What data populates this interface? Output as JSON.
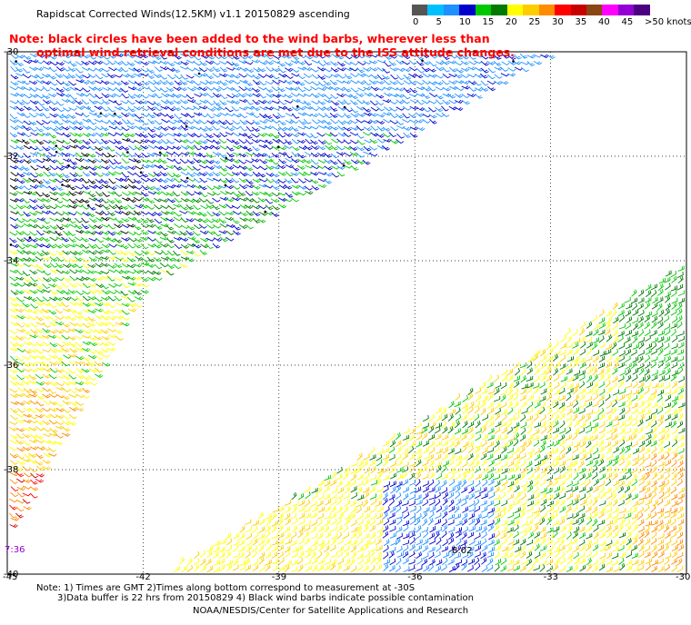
{
  "title": "Rapidscat Corrected Winds(12.5KM) v1.1 20150829 ascending",
  "note": {
    "line1": "Note: black circles have been added to the wind barbs, wherever less than",
    "line2": "optimal wind retrieval conditions are met due to the ISS attitude changes."
  },
  "legend": {
    "unit": "knots",
    "colors": [
      "#555555",
      "#00bfff",
      "#1e90ff",
      "#0000cd",
      "#00c800",
      "#007a00",
      "#ffff00",
      "#ffcc00",
      "#ff8c00",
      "#ff0000",
      "#c80000",
      "#8b4513",
      "#ff00ff",
      "#9400d3",
      "#4b0082"
    ],
    "labels": [
      {
        "text": "0",
        "at": 0
      },
      {
        "text": "5",
        "at": 1
      },
      {
        "text": "10",
        "at": 2
      },
      {
        "text": "15",
        "at": 3
      },
      {
        "text": "20",
        "at": 4
      },
      {
        "text": "25",
        "at": 5
      },
      {
        "text": "30",
        "at": 6
      },
      {
        "text": "35",
        "at": 7
      },
      {
        "text": "40",
        "at": 8
      },
      {
        "text": "45",
        "at": 9
      },
      {
        "text": ">50 knots",
        "at": 10
      }
    ]
  },
  "axes": {
    "lon_ticks": [
      "-45",
      "-42",
      "-39",
      "-36",
      "-33",
      "-30"
    ],
    "lat_ticks": [
      "-30",
      "-32",
      "-34",
      "-36",
      "-38",
      "-40"
    ]
  },
  "time_labels": [
    {
      "text": "7:36"
    },
    {
      "text": "8:02"
    }
  ],
  "footer": {
    "line1": "Note: 1) Times are GMT 2)Times along bottom correspond to measurement at -30S",
    "line2": "3)Data buffer is 22 hrs from 20150829 4) Black wind barbs indicate possible contamination",
    "credit": "NOAA/NESDIS/Center for Satellite Applications and Research"
  }
}
